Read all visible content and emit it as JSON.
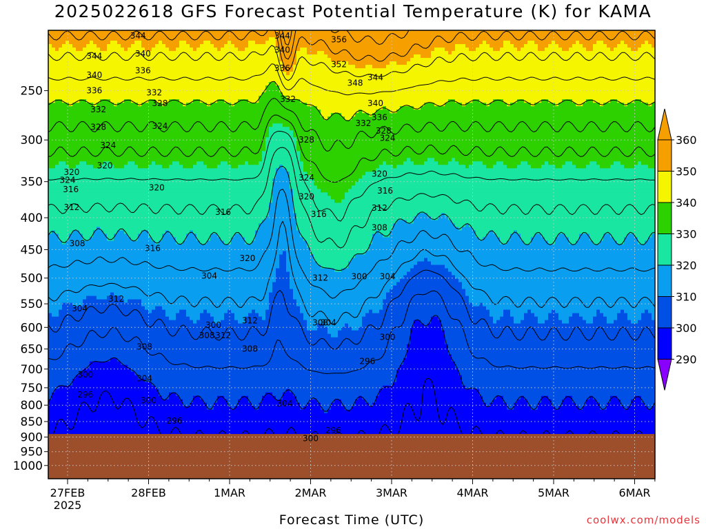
{
  "chart_data": {
    "type": "heatmap",
    "title": "2025022618 GFS Forecast Potential Temperature (K) for KAMA",
    "xlabel": "Forecast Time (UTC)",
    "ylabel": "",
    "y_ticks": [
      250,
      300,
      350,
      400,
      450,
      500,
      550,
      600,
      650,
      700,
      750,
      800,
      850,
      900,
      950,
      1000
    ],
    "ylim": [
      200,
      1050
    ],
    "x_ticks": [
      {
        "label": "27FEB",
        "sub": "2025"
      },
      {
        "label": "28FEB",
        "sub": ""
      },
      {
        "label": "1MAR",
        "sub": ""
      },
      {
        "label": "2MAR",
        "sub": ""
      },
      {
        "label": "3MAR",
        "sub": ""
      },
      {
        "label": "4MAR",
        "sub": ""
      },
      {
        "label": "5MAR",
        "sub": ""
      },
      {
        "label": "6MAR",
        "sub": ""
      }
    ],
    "colorbar": {
      "levels": [
        290,
        300,
        310,
        320,
        330,
        340,
        350,
        360
      ],
      "colors": [
        "#8a00ff",
        "#0000ff",
        "#0050e6",
        "#0a9ef0",
        "#19e6a0",
        "#2dd100",
        "#f5f500",
        "#f5a000"
      ]
    },
    "contour_interval": 4,
    "contour_labels": [
      {
        "v": "344",
        "t": 0.33,
        "p": 220
      },
      {
        "v": "340",
        "t": 0.33,
        "p": 236
      },
      {
        "v": "336",
        "t": 0.33,
        "p": 250
      },
      {
        "v": "332",
        "t": 0.38,
        "p": 268
      },
      {
        "v": "328",
        "t": 0.38,
        "p": 286
      },
      {
        "v": "324",
        "t": 0.5,
        "p": 306
      },
      {
        "v": "320",
        "t": 0.46,
        "p": 330
      },
      {
        "v": "324",
        "t": 0.0,
        "p": 348
      },
      {
        "v": "320",
        "t": 0.05,
        "p": 338
      },
      {
        "v": "316",
        "t": 0.04,
        "p": 360
      },
      {
        "v": "312",
        "t": 0.05,
        "p": 385
      },
      {
        "v": "308",
        "t": 0.12,
        "p": 440
      },
      {
        "v": "304",
        "t": 0.15,
        "p": 560
      },
      {
        "v": "300",
        "t": 0.22,
        "p": 715
      },
      {
        "v": "296",
        "t": 0.22,
        "p": 770
      },
      {
        "v": "344",
        "t": 0.87,
        "p": 204
      },
      {
        "v": "340",
        "t": 0.93,
        "p": 218
      },
      {
        "v": "336",
        "t": 0.93,
        "p": 232
      },
      {
        "v": "332",
        "t": 1.07,
        "p": 252
      },
      {
        "v": "328",
        "t": 1.14,
        "p": 262
      },
      {
        "v": "324",
        "t": 1.14,
        "p": 285
      },
      {
        "v": "320",
        "t": 1.1,
        "p": 358
      },
      {
        "v": "316",
        "t": 1.05,
        "p": 448
      },
      {
        "v": "312",
        "t": 0.6,
        "p": 540
      },
      {
        "v": "308",
        "t": 0.95,
        "p": 645
      },
      {
        "v": "304",
        "t": 0.95,
        "p": 725
      },
      {
        "v": "300",
        "t": 1.0,
        "p": 786
      },
      {
        "v": "296",
        "t": 1.32,
        "p": 848
      },
      {
        "v": "304",
        "t": 1.75,
        "p": 496
      },
      {
        "v": "300",
        "t": 1.8,
        "p": 595
      },
      {
        "v": "312",
        "t": 1.92,
        "p": 618
      },
      {
        "v": "308",
        "t": 1.72,
        "p": 618
      },
      {
        "v": "316",
        "t": 1.92,
        "p": 392
      },
      {
        "v": "320",
        "t": 2.22,
        "p": 465
      },
      {
        "v": "312",
        "t": 2.25,
        "p": 585
      },
      {
        "v": "308",
        "t": 2.25,
        "p": 650
      },
      {
        "v": "304",
        "t": 2.68,
        "p": 795
      },
      {
        "v": "344",
        "t": 2.65,
        "p": 204
      },
      {
        "v": "340",
        "t": 2.65,
        "p": 215
      },
      {
        "v": "336",
        "t": 2.65,
        "p": 230
      },
      {
        "v": "332",
        "t": 2.72,
        "p": 258
      },
      {
        "v": "328",
        "t": 2.95,
        "p": 300
      },
      {
        "v": "324",
        "t": 2.95,
        "p": 345
      },
      {
        "v": "320",
        "t": 2.95,
        "p": 370
      },
      {
        "v": "316",
        "t": 3.1,
        "p": 395
      },
      {
        "v": "312",
        "t": 3.12,
        "p": 500
      },
      {
        "v": "308",
        "t": 3.12,
        "p": 590
      },
      {
        "v": "304",
        "t": 3.22,
        "p": 590
      },
      {
        "v": "300",
        "t": 3.0,
        "p": 905
      },
      {
        "v": "296",
        "t": 3.28,
        "p": 878
      },
      {
        "v": "356",
        "t": 3.35,
        "p": 207
      },
      {
        "v": "352",
        "t": 3.35,
        "p": 227
      },
      {
        "v": "348",
        "t": 3.55,
        "p": 243
      },
      {
        "v": "344",
        "t": 3.8,
        "p": 238
      },
      {
        "v": "340",
        "t": 3.8,
        "p": 262
      },
      {
        "v": "336",
        "t": 3.85,
        "p": 276
      },
      {
        "v": "332",
        "t": 3.65,
        "p": 282
      },
      {
        "v": "328",
        "t": 3.9,
        "p": 290
      },
      {
        "v": "324",
        "t": 3.95,
        "p": 298
      },
      {
        "v": "320",
        "t": 3.85,
        "p": 340
      },
      {
        "v": "316",
        "t": 3.92,
        "p": 362
      },
      {
        "v": "312",
        "t": 3.85,
        "p": 386
      },
      {
        "v": "308",
        "t": 3.85,
        "p": 415
      },
      {
        "v": "304",
        "t": 3.95,
        "p": 497
      },
      {
        "v": "300",
        "t": 3.6,
        "p": 497
      },
      {
        "v": "296",
        "t": 3.7,
        "p": 680
      },
      {
        "v": "300",
        "t": 3.95,
        "p": 622
      }
    ]
  },
  "labels": {
    "title": "2025022618 GFS Forecast Potential Temperature (K) for KAMA",
    "xaxis_title": "Forecast Time (UTC)",
    "credit": "coolwx.com/models"
  },
  "colors": {
    "ground": "#9c4f2a",
    "frame": "#000000",
    "grid": "#c8c8c8",
    "credit": "#e8343a"
  }
}
